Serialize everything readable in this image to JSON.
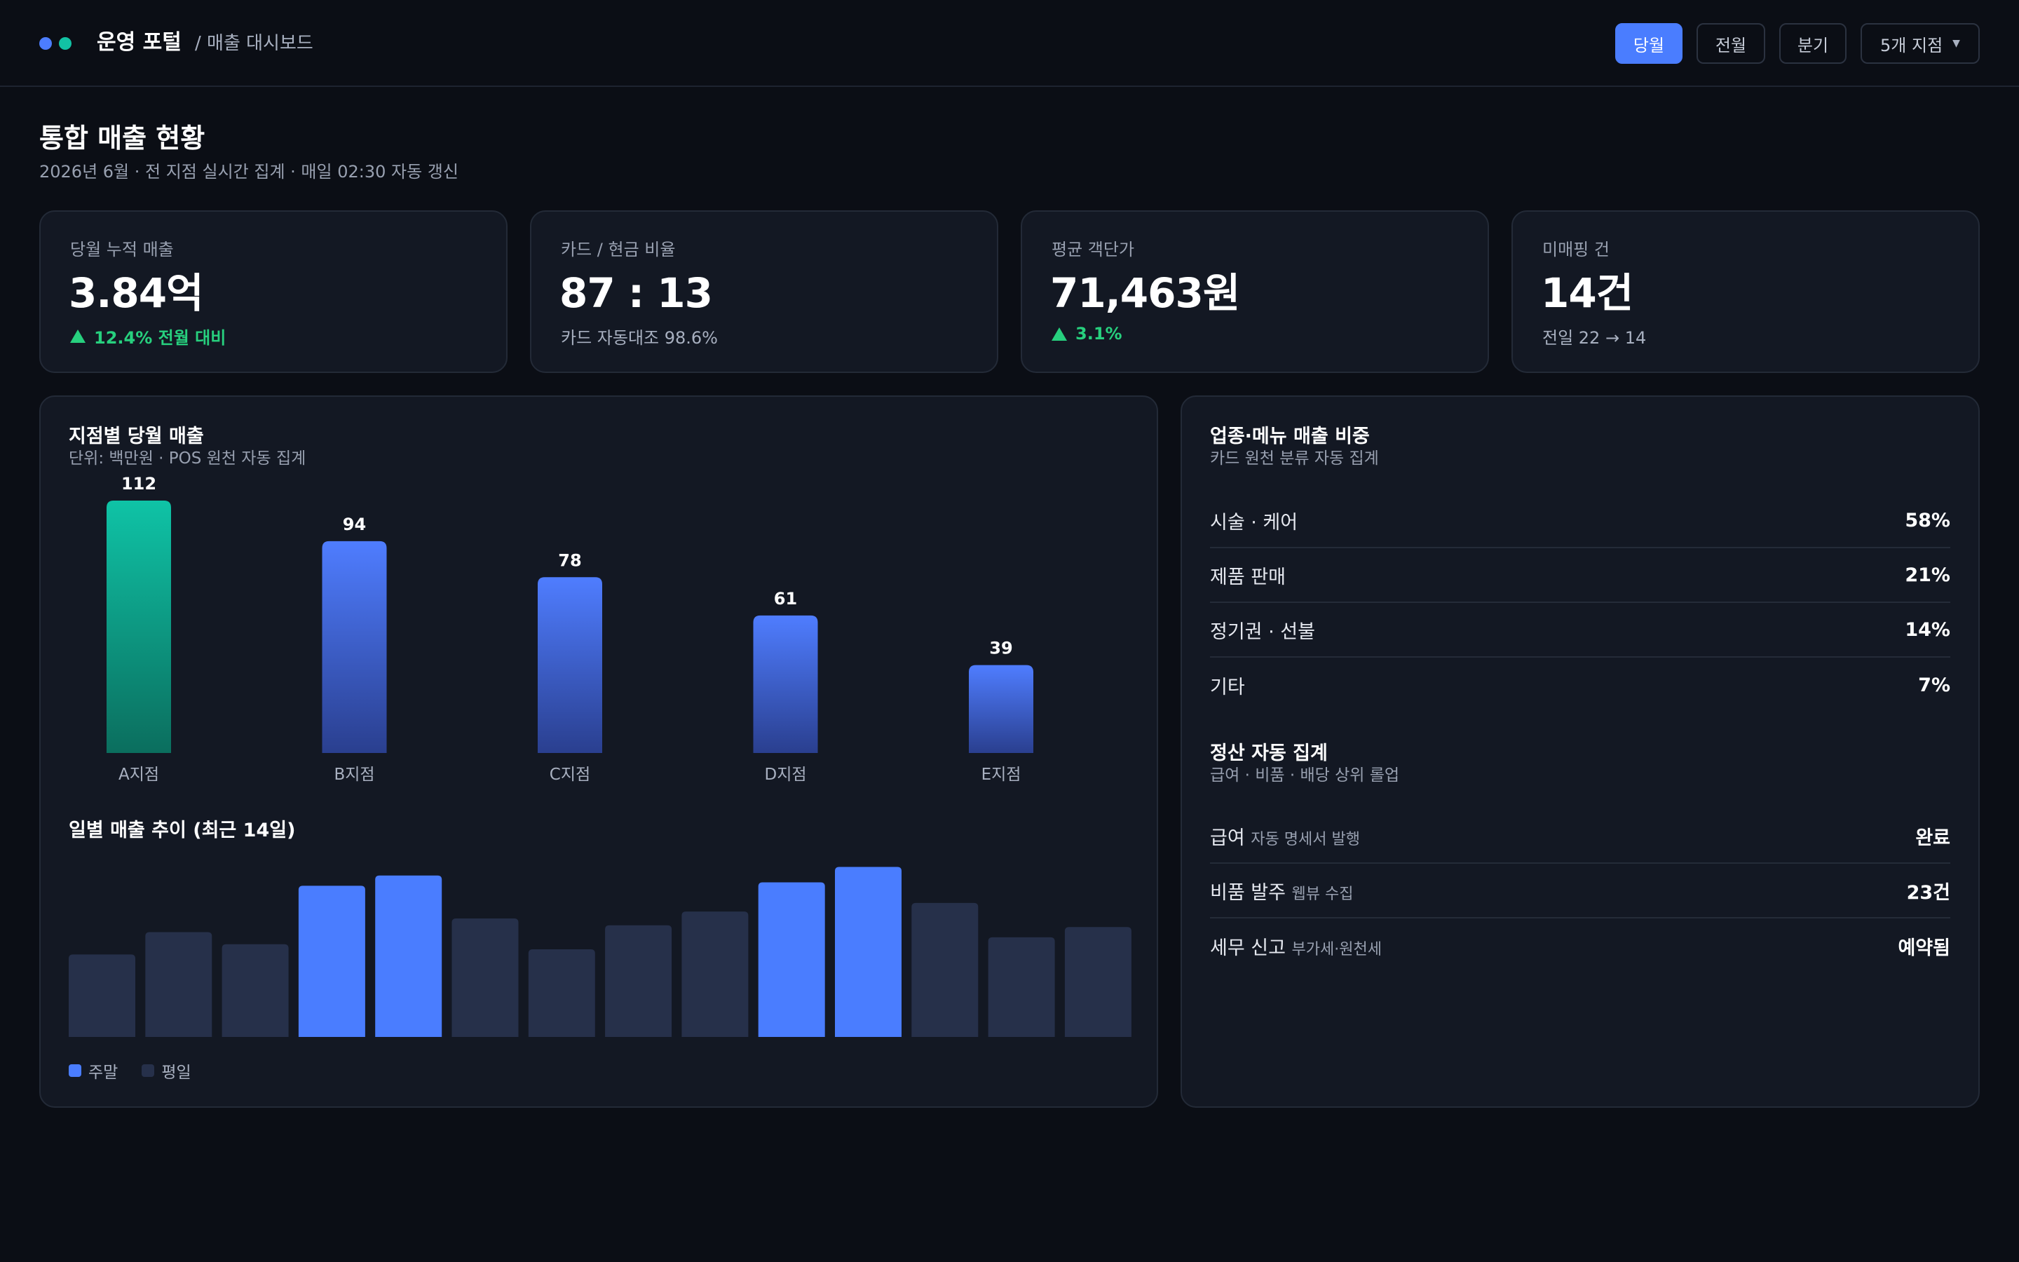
{
  "header": {
    "app_title": "운영 포털",
    "breadcrumb": "/ 매출 대시보드",
    "buttons": {
      "this_month": "당월",
      "last_month": "전월",
      "quarter": "분기",
      "branches": "5개 지점"
    },
    "colors": {
      "accent": "#4a7dff",
      "teal": "#12c2a4"
    }
  },
  "page": {
    "title": "통합 매출 현황",
    "subtitle": "2026년 6월 · 전 지점 실시간 집계 · 매일 02:30 자동 갱신"
  },
  "kpis": [
    {
      "label": "당월 누적 매출",
      "value": "3.84억",
      "sub": "12.4% 전월 대비",
      "trend": "up"
    },
    {
      "label": "카드 / 현금 비율",
      "value": "87 : 13",
      "sub": "카드 자동대조 98.6%"
    },
    {
      "label": "평균 객단가",
      "value": "71,463원",
      "sub": "3.1%",
      "trend": "up"
    },
    {
      "label": "미매핑 건",
      "value": "14건",
      "sub": "전일 22 → 14"
    }
  ],
  "branch_chart": {
    "title": "지점별 당월 매출",
    "subtitle": "단위: 백만원 · POS 원천 자동 집계"
  },
  "daily_chart": {
    "title": "일별 매출 추이 (최근 14일)",
    "legend": {
      "weekend": "주말",
      "weekday": "평일"
    }
  },
  "chart_data": [
    {
      "type": "bar",
      "categories": [
        "A지점",
        "B지점",
        "C지점",
        "D지점",
        "E지점"
      ],
      "values": [
        112,
        94,
        78,
        61,
        39
      ],
      "data_labels": [
        "112",
        "94",
        "78",
        "61",
        "39"
      ],
      "highlight_index": 0,
      "colors": {
        "highlight": "#12c2a4",
        "default": "#4a7dff"
      },
      "ylim": [
        0,
        112
      ]
    },
    {
      "type": "bar",
      "series": [
        {
          "name": "주말",
          "color": "#4a7dff"
        },
        {
          "name": "평일",
          "color": "#26304a"
        }
      ],
      "values": [
        48,
        61,
        54,
        88,
        94,
        69,
        51,
        65,
        73,
        90,
        99,
        78,
        58,
        64
      ],
      "weekend": [
        false,
        false,
        false,
        true,
        true,
        false,
        false,
        false,
        false,
        true,
        true,
        false,
        false,
        false
      ],
      "ylim": [
        0,
        100
      ]
    }
  ],
  "category_share": {
    "title": "업종·메뉴 매출 비중",
    "subtitle": "카드 원천 분류 자동 집계",
    "rows": [
      {
        "name": "시술 · 케어",
        "value": "58%"
      },
      {
        "name": "제품 판매",
        "value": "21%"
      },
      {
        "name": "정기권 · 선불",
        "value": "14%"
      },
      {
        "name": "기타",
        "value": "7%"
      }
    ]
  },
  "settlement": {
    "title": "정산 자동 집계",
    "subtitle": "급여 · 비품 · 배당 상위 롤업",
    "rows": [
      {
        "name": "급여",
        "note": "자동 명세서 발행",
        "value": "완료"
      },
      {
        "name": "비품 발주",
        "note": "웹뷰 수집",
        "value": "23건"
      },
      {
        "name": "세무 신고",
        "note": "부가세·원천세",
        "value": "예약됨"
      }
    ]
  }
}
